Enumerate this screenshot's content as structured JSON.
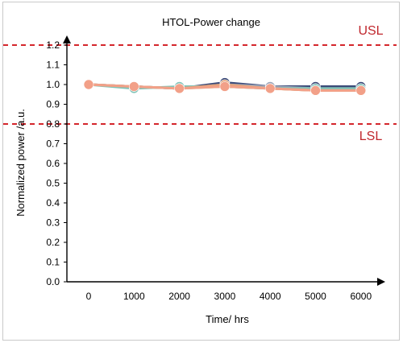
{
  "chart_data": {
    "type": "line",
    "title": "HTOL-Power change",
    "xlabel": "Time/ hrs",
    "ylabel": "Normalized power /a.u.",
    "categories": [
      "0",
      "1000",
      "2000",
      "3000",
      "4000",
      "5000",
      "6000"
    ],
    "ylim": [
      0.0,
      1.2
    ],
    "yticks": [
      "0.0",
      "0.1",
      "0.2",
      "0.3",
      "0.4",
      "0.5",
      "0.6",
      "0.7",
      "0.8",
      "0.9",
      "1.0",
      "1.1",
      "1.2"
    ],
    "grid": false,
    "limits": [
      {
        "label": "USL",
        "value": 1.2,
        "color": "#d4262c"
      },
      {
        "label": "LSL",
        "value": 0.8,
        "color": "#d4262c"
      }
    ],
    "series": [
      {
        "color": "#3b4a78",
        "values": [
          1.0,
          0.99,
          0.98,
          1.01,
          0.99,
          0.99,
          0.99
        ]
      },
      {
        "color": "#9aa4b8",
        "values": [
          1.0,
          0.99,
          0.98,
          1.0,
          0.99,
          0.98,
          0.98
        ]
      },
      {
        "color": "#7fc3b8",
        "values": [
          1.0,
          0.98,
          0.99,
          0.99,
          0.98,
          0.98,
          0.98
        ]
      },
      {
        "color": "#b5c98a",
        "values": [
          1.0,
          0.99,
          0.98,
          0.99,
          0.98,
          0.97,
          0.97
        ]
      },
      {
        "color": "#e3a37a",
        "values": [
          1.0,
          0.99,
          0.98,
          1.0,
          0.98,
          0.97,
          0.97
        ]
      },
      {
        "color": "#f2a088",
        "values": [
          1.0,
          0.99,
          0.98,
          0.99,
          0.98,
          0.97,
          0.97
        ]
      }
    ]
  }
}
